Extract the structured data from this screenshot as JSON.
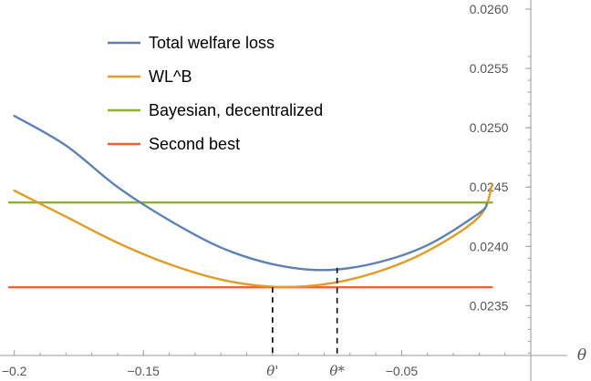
{
  "chart_data": {
    "type": "line",
    "title": "",
    "xlabel": "θ",
    "ylabel": "",
    "xlim": [
      -0.202,
      0.0
    ],
    "ylim": [
      0.02308,
      0.026
    ],
    "x_ticks": [
      -0.2,
      -0.15,
      -0.05
    ],
    "x_tick_labels": [
      "−0.2",
      "−0.15",
      "−0.05"
    ],
    "y_ticks": [
      0.0235,
      0.024,
      0.0245,
      0.025,
      0.0255,
      0.026
    ],
    "y_tick_labels": [
      "0.0235",
      "0.0240",
      "0.0245",
      "0.0250",
      "0.0255",
      "0.0260"
    ],
    "legend_position": "top-left",
    "series": [
      {
        "name": "Total welfare loss",
        "color": "#5e81b5",
        "x": [
          -0.2,
          -0.18,
          -0.16,
          -0.14,
          -0.12,
          -0.1,
          -0.08,
          -0.06,
          -0.04,
          -0.02,
          -0.017
        ],
        "y": [
          0.0251,
          0.02485,
          0.0245,
          0.02422,
          0.02399,
          0.02385,
          0.0238,
          0.02386,
          0.02401,
          0.02428,
          0.02436
        ]
      },
      {
        "name": "WL^B",
        "color": "#e19c24",
        "x": [
          -0.2,
          -0.18,
          -0.16,
          -0.14,
          -0.12,
          -0.1,
          -0.08,
          -0.06,
          -0.04,
          -0.02,
          -0.015
        ],
        "y": [
          0.02447,
          0.02425,
          0.02403,
          0.02385,
          0.02372,
          0.02366,
          0.02368,
          0.02378,
          0.02396,
          0.02425,
          0.02452
        ]
      },
      {
        "name": "Bayesian, decentralized",
        "color": "#8fb032",
        "x": [
          -0.202,
          -0.015
        ],
        "y": [
          0.02437,
          0.02437
        ]
      },
      {
        "name": "Second best",
        "color": "#eb6235",
        "x": [
          -0.202,
          -0.015
        ],
        "y": [
          0.023655,
          0.023655
        ]
      }
    ],
    "vertical_markers": [
      {
        "label": "θ'",
        "x": -0.1,
        "y_top": 0.023655
      },
      {
        "label": "θ*",
        "x": -0.075,
        "y_top": 0.02382
      }
    ]
  }
}
